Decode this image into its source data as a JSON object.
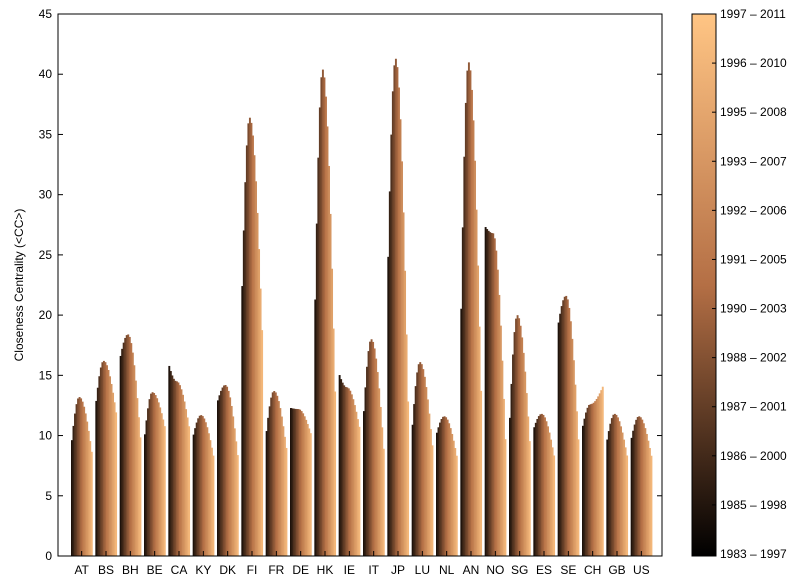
{
  "chart_data": {
    "type": "area",
    "ylabel": "Closeness Centrality (<CC>)",
    "xlabel": "",
    "ylim": [
      0,
      45
    ],
    "yticks": [
      0,
      5,
      10,
      15,
      20,
      25,
      30,
      35,
      40,
      45
    ],
    "categories": [
      "AT",
      "BS",
      "BH",
      "BE",
      "CA",
      "KY",
      "DK",
      "FI",
      "FR",
      "DE",
      "HK",
      "IE",
      "IT",
      "JP",
      "LU",
      "NL",
      "AN",
      "NO",
      "SG",
      "ES",
      "SE",
      "CH",
      "GB",
      "US"
    ],
    "series": [
      {
        "category": "AT",
        "start": 9.0,
        "peak": 13.2,
        "end": 8.2
      },
      {
        "category": "BS",
        "start": 12.3,
        "peak": 16.2,
        "end": 11.5
      },
      {
        "category": "BH",
        "start": 16.3,
        "peak": 18.4,
        "end": 9.0
      },
      {
        "category": "BE",
        "start": 9.5,
        "peak": 13.6,
        "end": 10.5
      },
      {
        "category": "CA",
        "start": 16.0,
        "peak": 14.5,
        "end": 10.4
      },
      {
        "category": "KY",
        "start": 9.8,
        "peak": 11.7,
        "end": 8.0
      },
      {
        "category": "DK",
        "start": 12.7,
        "peak": 14.2,
        "end": 7.8
      },
      {
        "category": "FI",
        "start": 20.0,
        "peak": 36.4,
        "end": 17.0
      },
      {
        "category": "FR",
        "start": 9.8,
        "peak": 13.7,
        "end": 8.5
      },
      {
        "category": "DE",
        "start": 12.3,
        "peak": 12.2,
        "end": 10.0
      },
      {
        "category": "HK",
        "start": 18.0,
        "peak": 40.4,
        "end": 11.0
      },
      {
        "category": "IE",
        "start": 15.2,
        "peak": 14.0,
        "end": 10.4
      },
      {
        "category": "IT",
        "start": 11.0,
        "peak": 18.0,
        "end": 8.0
      },
      {
        "category": "JP",
        "start": 22.0,
        "peak": 41.3,
        "end": 10.0
      },
      {
        "category": "LU",
        "start": 10.0,
        "peak": 16.1,
        "end": 8.5
      },
      {
        "category": "NL",
        "start": 10.0,
        "peak": 11.6,
        "end": 8.0
      },
      {
        "category": "AN",
        "start": 17.0,
        "peak": 41.0,
        "end": 11.0
      },
      {
        "category": "NO",
        "start": 27.4,
        "peak": 26.8,
        "end": 8.0
      },
      {
        "category": "SG",
        "start": 10.0,
        "peak": 20.0,
        "end": 8.5
      },
      {
        "category": "ES",
        "start": 10.5,
        "peak": 11.8,
        "end": 8.0
      },
      {
        "category": "SE",
        "start": 19.0,
        "peak": 21.6,
        "end": 8.5
      },
      {
        "category": "CH",
        "start": 10.5,
        "peak": 12.6,
        "end": 14.2
      },
      {
        "category": "GB",
        "start": 9.3,
        "peak": 11.8,
        "end": 8.0
      },
      {
        "category": "US",
        "start": 9.5,
        "peak": 11.6,
        "end": 8.0
      }
    ],
    "colorbar": {
      "labels": [
        "1983 – 1997",
        "1985 – 1998",
        "1986 – 2000",
        "1987 – 2001",
        "1988 – 2002",
        "1990 – 2003",
        "1991 – 2005",
        "1992 – 2006",
        "1993 – 2007",
        "1995 – 2008",
        "1996 – 2010",
        "1997 – 2011"
      ],
      "colors": [
        "#000000",
        "#b46f45",
        "#ffc584"
      ]
    },
    "grid": false,
    "legend": "colorbar-right"
  }
}
